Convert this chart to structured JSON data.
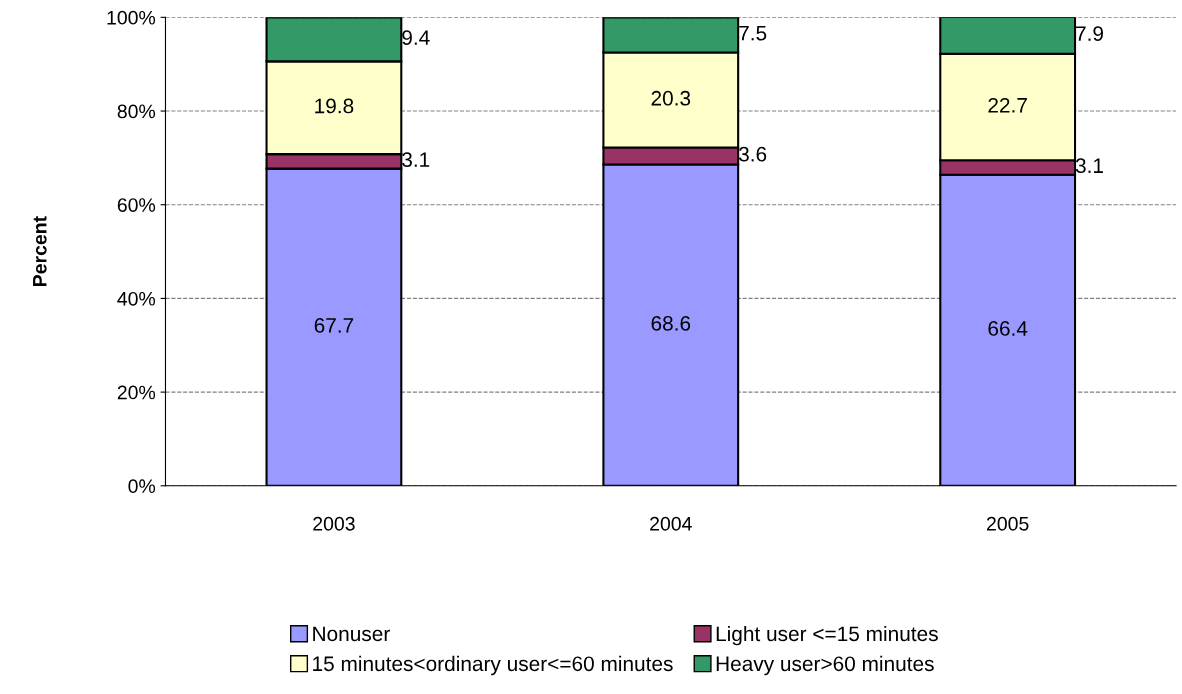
{
  "chart_data": {
    "type": "bar",
    "stacked": true,
    "ylabel": "Percent",
    "categories": [
      "2003",
      "2004",
      "2005"
    ],
    "series": [
      {
        "name": "Nonuser",
        "color": "#9999ff",
        "values": [
          67.7,
          68.6,
          66.4
        ]
      },
      {
        "name": "Light user <=15 minutes",
        "color": "#993366",
        "values": [
          3.1,
          3.6,
          3.1
        ]
      },
      {
        "name": "15 minutes<ordinary user<=60 minutes",
        "color": "#ffffcc",
        "values": [
          19.8,
          20.3,
          22.7
        ]
      },
      {
        "name": "Heavy user>60 minutes",
        "color": "#339966",
        "values": [
          9.4,
          7.5,
          7.9
        ]
      }
    ],
    "ylim": [
      0,
      100
    ],
    "yticks": [
      {
        "value": 0,
        "label": "0%"
      },
      {
        "value": 20,
        "label": "20%"
      },
      {
        "value": 40,
        "label": "40%"
      },
      {
        "value": 60,
        "label": "60%"
      },
      {
        "value": 80,
        "label": "80%"
      },
      {
        "value": 100,
        "label": "100%"
      }
    ],
    "grid": "y",
    "line_style": "dashed",
    "data_labels": true,
    "legend": "bottom"
  }
}
